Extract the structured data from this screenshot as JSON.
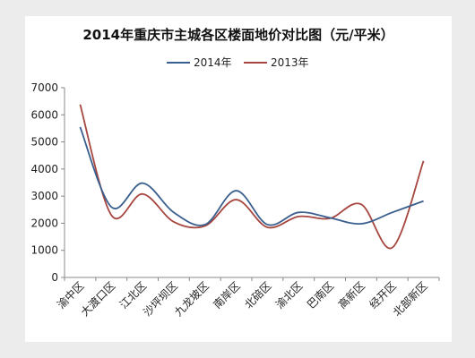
{
  "chart_data": {
    "type": "line",
    "title": "2014年重庆市主城各区楼面地价对比图（元/平米）",
    "xlabel": "",
    "ylabel": "",
    "ylim": [
      0,
      7000
    ],
    "yticks": [
      0,
      1000,
      2000,
      3000,
      4000,
      5000,
      6000,
      7000
    ],
    "categories": [
      "渝中区",
      "大渡口区",
      "江北区",
      "沙坪坝区",
      "九龙坡区",
      "南岸区",
      "北碚区",
      "渝北区",
      "巴南区",
      "高新区",
      "经开区",
      "北部新区"
    ],
    "legend_position": "top-center",
    "smooth": true,
    "series": [
      {
        "name": "2014年",
        "color": "#3a5f8f",
        "values": [
          5550,
          2600,
          3480,
          2400,
          1950,
          3200,
          1950,
          2400,
          2200,
          1980,
          2400,
          2820
        ]
      },
      {
        "name": "2013年",
        "color": "#a6463f",
        "values": [
          6380,
          2300,
          3080,
          2050,
          1900,
          2870,
          1850,
          2250,
          2180,
          2700,
          1100,
          4300
        ]
      }
    ]
  }
}
